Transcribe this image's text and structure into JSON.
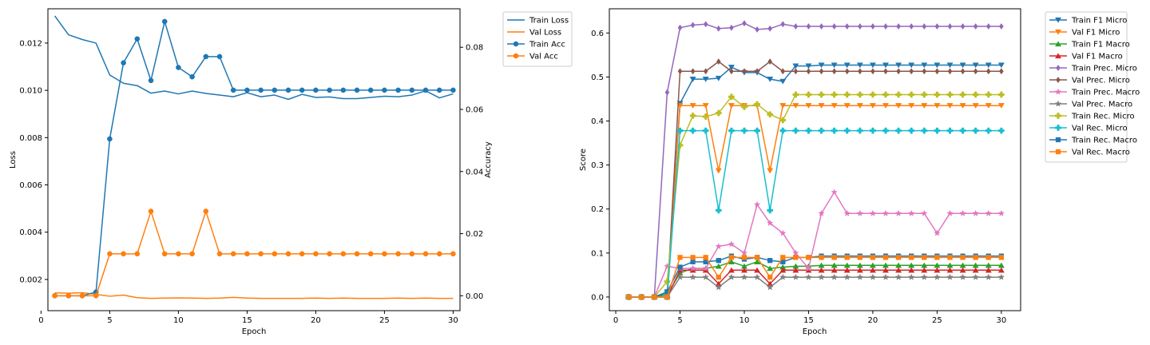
{
  "chart_data": [
    {
      "type": "line",
      "x": [
        1,
        2,
        3,
        4,
        5,
        6,
        7,
        8,
        9,
        10,
        11,
        12,
        13,
        14,
        15,
        16,
        17,
        18,
        19,
        20,
        21,
        22,
        23,
        24,
        25,
        26,
        27,
        28,
        29,
        30
      ],
      "xlabel": "Epoch",
      "ylabel": "Loss",
      "y2label": "Accuracy",
      "xlim": [
        0.5,
        30.5
      ],
      "ylim": [
        0.00068,
        0.01345
      ],
      "y2lim": [
        -0.0048,
        0.0924
      ],
      "xticks": [
        0,
        5,
        10,
        15,
        20,
        25,
        30
      ],
      "yticks": [
        0.002,
        0.004,
        0.006,
        0.008,
        0.01,
        0.012
      ],
      "ytick_labels": [
        "0.002",
        "0.004",
        "0.006",
        "0.008",
        "0.010",
        "0.012"
      ],
      "y2ticks": [
        0.0,
        0.02,
        0.04,
        0.06,
        0.08
      ],
      "y2tick_labels": [
        "0.00",
        "0.02",
        "0.04",
        "0.06",
        "0.08"
      ],
      "grid": false,
      "legend_position": "outside-top-right",
      "series": [
        {
          "name": "Train Loss",
          "axis": "left",
          "color": "#1f77b4",
          "marker": "none",
          "values": [
            0.01315,
            0.01235,
            0.01215,
            0.012,
            0.01065,
            0.0103,
            0.0102,
            0.00988,
            0.00997,
            0.00985,
            0.00997,
            0.00987,
            0.0098,
            0.00973,
            0.0099,
            0.00973,
            0.0098,
            0.00962,
            0.00983,
            0.0097,
            0.00972,
            0.00965,
            0.00965,
            0.0097,
            0.00975,
            0.00973,
            0.0098,
            0.00998,
            0.00968,
            0.00985
          ]
        },
        {
          "name": "Val Loss",
          "axis": "left",
          "color": "#ff7f0e",
          "marker": "none",
          "values": [
            0.00143,
            0.00142,
            0.00144,
            0.00137,
            0.00129,
            0.00134,
            0.00123,
            0.0012,
            0.00121,
            0.00122,
            0.00121,
            0.0012,
            0.00121,
            0.00124,
            0.00121,
            0.0012,
            0.0012,
            0.0012,
            0.0012,
            0.00121,
            0.0012,
            0.00121,
            0.0012,
            0.0012,
            0.0012,
            0.00121,
            0.0012,
            0.00121,
            0.0012,
            0.0012
          ]
        },
        {
          "name": "Train Acc",
          "axis": "right",
          "color": "#1f77b4",
          "marker": "circle",
          "values": [
            0,
            0,
            0,
            0.0012,
            0.0505,
            0.075,
            0.0827,
            0.0693,
            0.0883,
            0.0735,
            0.0705,
            0.077,
            0.077,
            0.0662,
            0.0662,
            0.0662,
            0.0662,
            0.0662,
            0.0662,
            0.0662,
            0.0662,
            0.0662,
            0.0662,
            0.0662,
            0.0662,
            0.0662,
            0.0662,
            0.0662,
            0.0662,
            0.0662
          ]
        },
        {
          "name": "Val Acc",
          "axis": "right",
          "color": "#ff7f0e",
          "marker": "circle",
          "values": [
            0,
            0,
            0,
            0,
            0.0135,
            0.0135,
            0.0135,
            0.0272,
            0.0135,
            0.0135,
            0.0135,
            0.0272,
            0.0135,
            0.0135,
            0.0135,
            0.0135,
            0.0135,
            0.0135,
            0.0135,
            0.0135,
            0.0135,
            0.0135,
            0.0135,
            0.0135,
            0.0135,
            0.0135,
            0.0135,
            0.0135,
            0.0135,
            0.0135
          ]
        }
      ]
    },
    {
      "type": "line",
      "x": [
        1,
        2,
        3,
        4,
        5,
        6,
        7,
        8,
        9,
        10,
        11,
        12,
        13,
        14,
        15,
        16,
        17,
        18,
        19,
        20,
        21,
        22,
        23,
        24,
        25,
        26,
        27,
        28,
        29,
        30
      ],
      "xlabel": "Epoch",
      "ylabel": "Score",
      "xlim": [
        -0.5,
        31.5
      ],
      "ylim": [
        -0.031,
        0.655
      ],
      "xticks": [
        0,
        5,
        10,
        15,
        20,
        25,
        30
      ],
      "yticks": [
        0.0,
        0.1,
        0.2,
        0.3,
        0.4,
        0.5,
        0.6
      ],
      "ytick_labels": [
        "0.0",
        "0.1",
        "0.2",
        "0.3",
        "0.4",
        "0.5",
        "0.6"
      ],
      "grid": false,
      "legend_position": "outside-top-right",
      "series": [
        {
          "name": "Train F1 Micro",
          "color": "#1f77b4",
          "marker": "tri-down",
          "values": [
            0,
            0,
            0,
            0.01,
            0.44,
            0.495,
            0.495,
            0.497,
            0.522,
            0.51,
            0.51,
            0.495,
            0.49,
            0.525,
            0.525,
            0.527,
            0.527,
            0.527,
            0.527,
            0.527,
            0.527,
            0.527,
            0.527,
            0.527,
            0.527,
            0.527,
            0.527,
            0.527,
            0.527,
            0.527
          ]
        },
        {
          "name": "Val F1 Micro",
          "color": "#ff7f0e",
          "marker": "tri-down",
          "values": [
            0,
            0,
            0,
            0,
            0.435,
            0.435,
            0.435,
            0.287,
            0.435,
            0.435,
            0.435,
            0.287,
            0.435,
            0.435,
            0.435,
            0.435,
            0.435,
            0.435,
            0.435,
            0.435,
            0.435,
            0.435,
            0.435,
            0.435,
            0.435,
            0.435,
            0.435,
            0.435,
            0.435,
            0.435
          ]
        },
        {
          "name": "Train F1 Macro",
          "color": "#2ca02c",
          "marker": "tri-up",
          "values": [
            0,
            0,
            0,
            0.005,
            0.055,
            0.065,
            0.065,
            0.07,
            0.08,
            0.07,
            0.08,
            0.065,
            0.068,
            0.07,
            0.07,
            0.072,
            0.072,
            0.072,
            0.072,
            0.072,
            0.072,
            0.072,
            0.072,
            0.072,
            0.072,
            0.072,
            0.072,
            0.072,
            0.072,
            0.072
          ]
        },
        {
          "name": "Val F1 Macro",
          "color": "#d62728",
          "marker": "tri-up",
          "values": [
            0,
            0,
            0,
            0,
            0.061,
            0.061,
            0.061,
            0.03,
            0.061,
            0.061,
            0.061,
            0.03,
            0.061,
            0.061,
            0.061,
            0.061,
            0.061,
            0.061,
            0.061,
            0.061,
            0.061,
            0.061,
            0.061,
            0.061,
            0.061,
            0.061,
            0.061,
            0.061,
            0.061,
            0.061
          ]
        },
        {
          "name": "Train Prec. Micro",
          "color": "#9467bd",
          "marker": "diamond",
          "values": [
            0,
            0,
            0,
            0.465,
            0.612,
            0.618,
            0.62,
            0.61,
            0.612,
            0.622,
            0.608,
            0.61,
            0.62,
            0.615,
            0.615,
            0.615,
            0.615,
            0.615,
            0.615,
            0.615,
            0.615,
            0.615,
            0.615,
            0.615,
            0.615,
            0.615,
            0.615,
            0.615,
            0.615,
            0.615
          ]
        },
        {
          "name": "Val Prec. Micro",
          "color": "#8c564b",
          "marker": "diamond",
          "values": [
            0,
            0,
            0,
            0,
            0.513,
            0.513,
            0.513,
            0.535,
            0.513,
            0.513,
            0.513,
            0.535,
            0.513,
            0.513,
            0.513,
            0.513,
            0.513,
            0.513,
            0.513,
            0.513,
            0.513,
            0.513,
            0.513,
            0.513,
            0.513,
            0.513,
            0.513,
            0.513,
            0.513,
            0.513
          ]
        },
        {
          "name": "Train Prec. Macro",
          "color": "#e377c2",
          "marker": "star",
          "values": [
            0,
            0,
            0,
            0.07,
            0.065,
            0.065,
            0.065,
            0.115,
            0.12,
            0.1,
            0.21,
            0.168,
            0.145,
            0.1,
            0.065,
            0.19,
            0.238,
            0.19,
            0.19,
            0.19,
            0.19,
            0.19,
            0.19,
            0.19,
            0.145,
            0.19,
            0.19,
            0.19,
            0.19,
            0.19
          ]
        },
        {
          "name": "Val Prec. Macro",
          "color": "#7f7f7f",
          "marker": "star",
          "values": [
            0,
            0,
            0,
            0,
            0.045,
            0.045,
            0.045,
            0.022,
            0.045,
            0.045,
            0.045,
            0.022,
            0.045,
            0.045,
            0.045,
            0.045,
            0.045,
            0.045,
            0.045,
            0.045,
            0.045,
            0.045,
            0.045,
            0.045,
            0.045,
            0.045,
            0.045,
            0.045,
            0.045,
            0.045
          ]
        },
        {
          "name": "Train Rec. Micro",
          "color": "#bcbd22",
          "marker": "plus",
          "values": [
            0,
            0,
            0,
            0.035,
            0.345,
            0.412,
            0.41,
            0.418,
            0.455,
            0.432,
            0.438,
            0.415,
            0.402,
            0.46,
            0.46,
            0.46,
            0.46,
            0.46,
            0.46,
            0.46,
            0.46,
            0.46,
            0.46,
            0.46,
            0.46,
            0.46,
            0.46,
            0.46,
            0.46,
            0.46
          ]
        },
        {
          "name": "Val Rec. Micro",
          "color": "#17becf",
          "marker": "plus",
          "values": [
            0,
            0,
            0,
            0,
            0.378,
            0.378,
            0.378,
            0.197,
            0.378,
            0.378,
            0.378,
            0.197,
            0.378,
            0.378,
            0.378,
            0.378,
            0.378,
            0.378,
            0.378,
            0.378,
            0.378,
            0.378,
            0.378,
            0.378,
            0.378,
            0.378,
            0.378,
            0.378,
            0.378,
            0.378
          ]
        },
        {
          "name": "Train Rec. Macro",
          "color": "#1f77b4",
          "marker": "square",
          "values": [
            0,
            0,
            0,
            0.012,
            0.068,
            0.08,
            0.08,
            0.083,
            0.093,
            0.086,
            0.09,
            0.083,
            0.08,
            0.09,
            0.09,
            0.093,
            0.093,
            0.093,
            0.093,
            0.093,
            0.093,
            0.093,
            0.093,
            0.093,
            0.093,
            0.093,
            0.093,
            0.093,
            0.093,
            0.093
          ]
        },
        {
          "name": "Val Rec. Macro",
          "color": "#ff7f0e",
          "marker": "square",
          "values": [
            0,
            0,
            0,
            0,
            0.09,
            0.09,
            0.09,
            0.045,
            0.09,
            0.09,
            0.09,
            0.045,
            0.09,
            0.09,
            0.09,
            0.09,
            0.09,
            0.09,
            0.09,
            0.09,
            0.09,
            0.09,
            0.09,
            0.09,
            0.09,
            0.09,
            0.09,
            0.09,
            0.09,
            0.09
          ]
        }
      ]
    }
  ]
}
